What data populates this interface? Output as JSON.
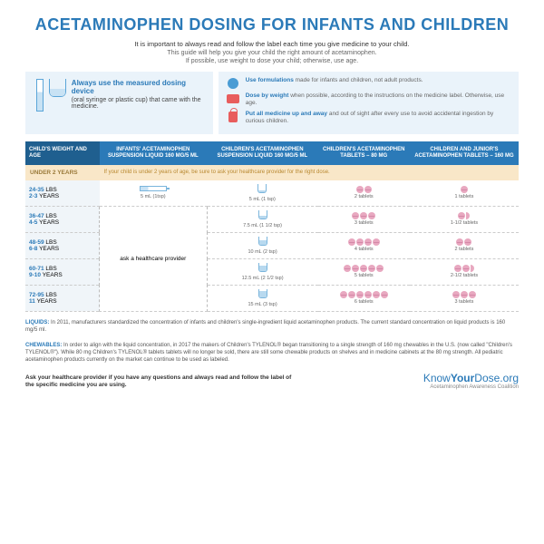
{
  "title": "ACETAMINOPHEN DOSING FOR INFANTS AND CHILDREN",
  "subtitle": "It is important to always read and follow the label each time you give medicine to your child.",
  "subtitle2": "This guide will help you give your child the right amount of acetaminophen.",
  "subtitle3": "If possible, use weight to dose your child; otherwise, use age.",
  "tipLeft": {
    "bold": "Always use the measured dosing device",
    "text": "(oral syringe or plastic cup) that came with the medicine."
  },
  "tips": [
    {
      "bold": "Use formulations",
      "text": " made for infants and children, not adult products."
    },
    {
      "bold": "Dose by weight",
      "text": " when possible, according to the instructions on the medicine label. Otherwise, use age."
    },
    {
      "bold": "Put all medicine up and away",
      "text": " and out of sight after every use to avoid accidental ingestion by curious children."
    }
  ],
  "headers": [
    "CHILD'S WEIGHT AND AGE",
    "INFANTS' ACETAMINOPHEN SUSPENSION LIQUID 160 MG/5 ML",
    "CHILDREN'S ACETAMINOPHEN SUSPENSION LIQUID 160 MG/5 ML",
    "CHILDREN'S ACETAMINOPHEN TABLETS – 80 MG",
    "CHILDREN AND JUNIOR'S ACETAMINOPHEN TABLETS – 160 MG"
  ],
  "under2": {
    "label": "UNDER 2 YEARS",
    "note": "If your child is under 2 years of age, be sure to ask your healthcare provider for the right dose."
  },
  "rows": [
    {
      "w": "24-35",
      "a": "2-3",
      "liq": "5 mL (1tsp)",
      "liq2": "5 mL (1 tsp)",
      "t80": 2,
      "t160": 1,
      "t160h": false,
      "fill": 1
    },
    {
      "w": "36-47",
      "a": "4-5",
      "liq2": "7.5 mL (1 1/2 tsp)",
      "t80": 3,
      "t160": 1,
      "t160h": true,
      "fill": 2
    },
    {
      "w": "48-59",
      "a": "6-8",
      "liq2": "10 mL (2 tsp)",
      "t80": 4,
      "t160": 2,
      "t160h": false,
      "fill": 3
    },
    {
      "w": "60-71",
      "a": "9-10",
      "liq2": "12.5 mL (2 1/2 tsp)",
      "t80": 5,
      "t160": 2,
      "t160h": true,
      "fill": 4
    },
    {
      "w": "72-95",
      "a": "11",
      "liq2": "15 mL (3 tsp)",
      "t80": 6,
      "t160": 3,
      "t160h": false,
      "fill": 5
    }
  ],
  "ask": "ask a healthcare provider",
  "liquidsNote": "In 2011, manufacturers standardized the concentration of infants and children's single-ingredient liquid acetaminophen products. The current standard concentration on liquid products is 160 mg/5 ml.",
  "chewNote": "In order to align with the liquid concentration, in 2017 the makers of Children's TYLENOL® began transitioning to a single strength of 160 mg chewables in the U.S. (now called \"Children's TYLENOL®\"). While 80 mg Children's TYLENOL® tablets tablets will no longer be sold, there are still some chewable products on shelves and in medicine cabinets at the 80 mg strength. All pediatric acetaminophen products currently on the market can continue to be used as labeled.",
  "footerL": "Ask your healthcare provider if you have any questions and always read and follow the label of the specific medicine you are using.",
  "brand": "KnowYourDose.org",
  "brandSub": "Acetaminophen Awareness Coalition"
}
